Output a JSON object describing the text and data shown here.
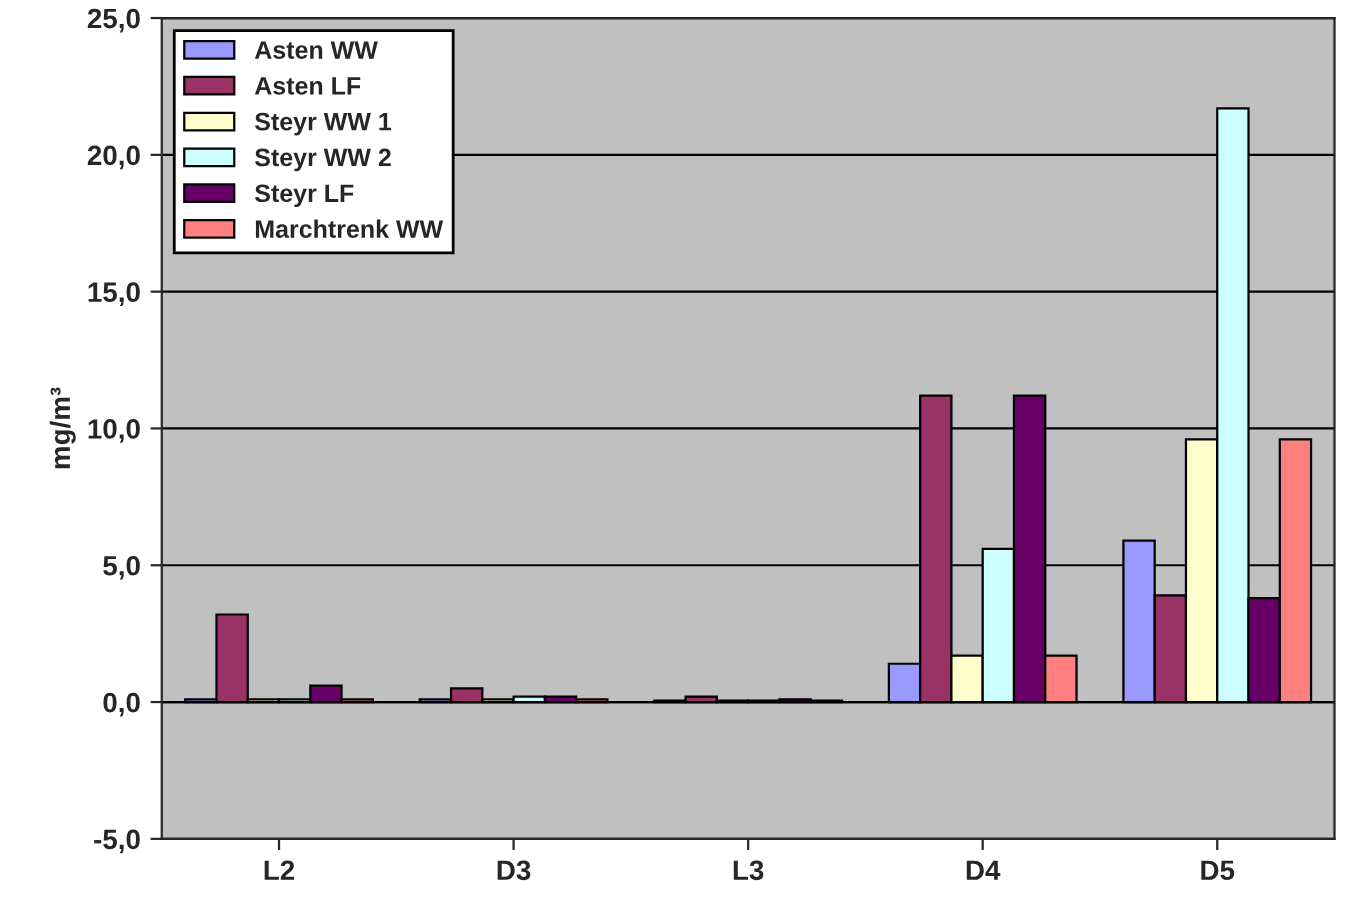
{
  "chart_data": {
    "type": "bar",
    "ylabel": "mg/m³",
    "categories": [
      "L2",
      "D3",
      "L3",
      "D4",
      "D5"
    ],
    "series": [
      {
        "name": "Asten WW",
        "color": "#9999ff",
        "values": [
          0.1,
          0.1,
          0.05,
          1.4,
          5.9
        ]
      },
      {
        "name": "Asten LF",
        "color": "#993366",
        "values": [
          3.2,
          0.5,
          0.2,
          11.2,
          3.9
        ]
      },
      {
        "name": "Steyr WW 1",
        "color": "#ffffcc",
        "values": [
          0.1,
          0.1,
          0.05,
          1.7,
          9.6
        ]
      },
      {
        "name": "Steyr WW 2",
        "color": "#ccffff",
        "values": [
          0.1,
          0.2,
          0.05,
          5.6,
          21.7
        ]
      },
      {
        "name": "Steyr LF",
        "color": "#660066",
        "values": [
          0.6,
          0.2,
          0.1,
          11.2,
          3.8
        ]
      },
      {
        "name": "Marchtrenk WW",
        "color": "#ff8080",
        "values": [
          0.1,
          0.1,
          0.05,
          1.7,
          9.6
        ]
      }
    ],
    "ylim": [
      -5,
      25
    ],
    "yticks": [
      {
        "value": -5,
        "label": "-5,0"
      },
      {
        "value": 0,
        "label": "0,0"
      },
      {
        "value": 5,
        "label": "5,0"
      },
      {
        "value": 10,
        "label": "10,0"
      },
      {
        "value": 15,
        "label": "15,0"
      },
      {
        "value": 20,
        "label": "20,0"
      },
      {
        "value": 25,
        "label": "25,0"
      }
    ],
    "grid": "y",
    "legend": "top left"
  }
}
